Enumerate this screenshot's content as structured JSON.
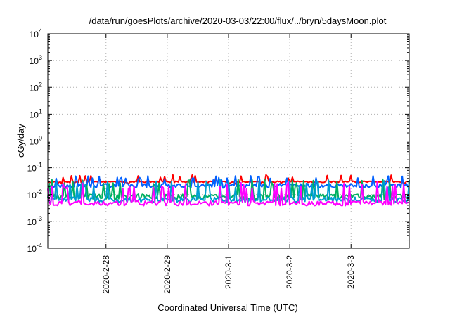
{
  "chart_data": {
    "type": "line",
    "title": "/data/run/goesPlots/archive/2020-03-03/22:00/flux/../bryn/5daysMoon.plot",
    "xlabel": "Coordinated Universal Time (UTC)",
    "ylabel": "cGy/day",
    "y_scale": "log",
    "ylim": [
      0.0001,
      10000
    ],
    "y_ticks": [
      {
        "base": "10",
        "exp": "4",
        "value": 10000
      },
      {
        "base": "10",
        "exp": "3",
        "value": 1000
      },
      {
        "base": "10",
        "exp": "2",
        "value": 100
      },
      {
        "base": "10",
        "exp": "1",
        "value": 10
      },
      {
        "base": "10",
        "exp": "0",
        "value": 1
      },
      {
        "base": "10",
        "exp": "-1",
        "value": 0.1
      },
      {
        "base": "10",
        "exp": "-2",
        "value": 0.01
      },
      {
        "base": "10",
        "exp": "-3",
        "value": 0.001
      },
      {
        "base": "10",
        "exp": "-4",
        "value": 0.0001
      }
    ],
    "x_range_days": [
      -0.95,
      4.95
    ],
    "x_ticks": [
      {
        "label": "2020-2-28",
        "day": 0
      },
      {
        "label": "2020-2-29",
        "day": 1
      },
      {
        "label": "2020-3-1",
        "day": 2
      },
      {
        "label": "2020-3-2",
        "day": 3
      },
      {
        "label": "2020-3-3",
        "day": 4
      }
    ],
    "grid": true,
    "series": [
      {
        "color": "#ff0000",
        "base": 0.03,
        "spike": 0.055,
        "amp": 0.12,
        "seed": 11
      },
      {
        "color": "#0060ff",
        "base": 0.022,
        "spike": 0.05,
        "amp": 0.35,
        "seed": 23
      },
      {
        "color": "#00b060",
        "base": 0.0085,
        "spike": 0.04,
        "amp": 0.45,
        "seed": 37
      },
      {
        "color": "#009fd0",
        "base": 0.0065,
        "spike": 0.035,
        "amp": 0.45,
        "seed": 41
      },
      {
        "color": "#ff00ff",
        "base": 0.0048,
        "spike": 0.03,
        "amp": 0.4,
        "seed": 53
      }
    ]
  }
}
